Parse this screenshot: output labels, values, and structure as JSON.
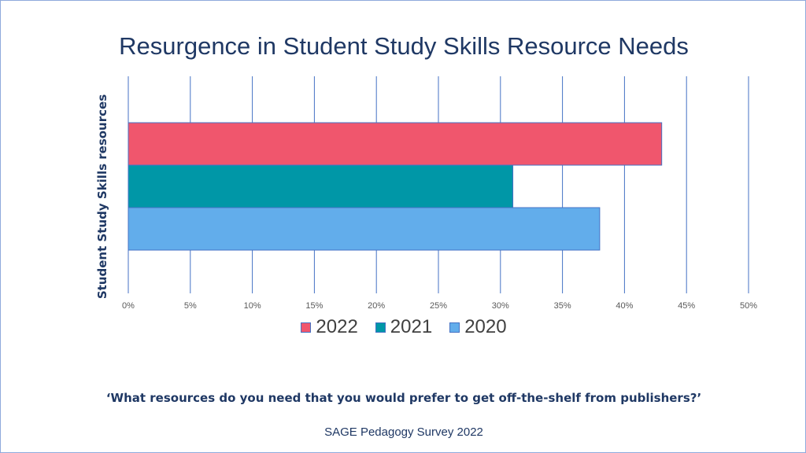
{
  "slide": {
    "question": "‘What resources do you need that you would prefer to get off-the-shelf from publishers?’",
    "source": "SAGE Pedagogy Survey 2022"
  },
  "chart_data": {
    "type": "bar",
    "orientation": "horizontal",
    "title": "Resurgence in Student Study Skills Resource Needs",
    "ylabel": "Student Study Skills resources",
    "xlabel": "",
    "categories": [
      "Student Study Skills resources"
    ],
    "series": [
      {
        "name": "2022",
        "values": [
          43
        ],
        "color": "#f0566d"
      },
      {
        "name": "2021",
        "values": [
          31
        ],
        "color": "#0097a7"
      },
      {
        "name": "2020",
        "values": [
          38
        ],
        "color": "#62adeb"
      }
    ],
    "xlim": [
      0,
      50
    ],
    "xticks": [
      "0%",
      "5%",
      "10%",
      "15%",
      "20%",
      "25%",
      "30%",
      "35%",
      "40%",
      "45%",
      "50%"
    ],
    "value_unit": "%",
    "grid": true,
    "legend": "bottom"
  }
}
